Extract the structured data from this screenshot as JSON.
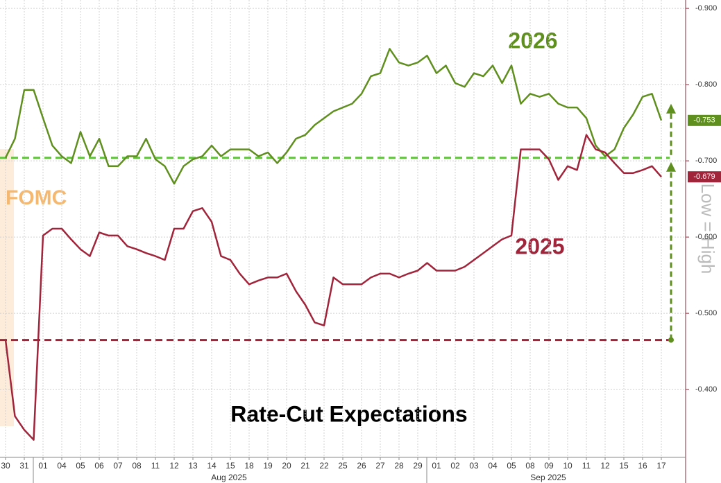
{
  "chart_data": {
    "type": "line",
    "title": "Rate-Cut Expectations",
    "annotations": [
      "2026",
      "2025",
      "FOMC",
      "Low = High"
    ],
    "x_groups": [
      "Aug 2025",
      "Sep 2025"
    ],
    "categories": [
      "30",
      null,
      "31",
      null,
      "01",
      null,
      "04",
      null,
      "05",
      null,
      "06",
      null,
      "07",
      null,
      "08",
      null,
      "11",
      null,
      "12",
      null,
      "13",
      null,
      "14",
      null,
      "15",
      null,
      "18",
      null,
      "19",
      null,
      "20",
      null,
      "21",
      null,
      "22",
      null,
      "25",
      null,
      "26",
      null,
      "27",
      null,
      "28",
      null,
      "29",
      null,
      "01",
      null,
      "02",
      null,
      "03",
      null,
      "04",
      null,
      "05",
      null,
      "08",
      null,
      "09",
      null,
      "10",
      null,
      "11",
      null,
      "12",
      null,
      "15",
      null,
      "16",
      null,
      "17"
    ],
    "series": [
      {
        "name": "2026",
        "color": "#5f8f1e",
        "values": [
          -0.704,
          -0.729,
          -0.793,
          -0.793,
          -0.756,
          -0.72,
          -0.706,
          -0.697,
          -0.738,
          -0.706,
          -0.729,
          -0.693,
          -0.693,
          -0.706,
          -0.706,
          -0.729,
          -0.702,
          -0.693,
          -0.67,
          -0.693,
          -0.702,
          -0.706,
          -0.72,
          -0.706,
          -0.715,
          -0.715,
          -0.715,
          -0.706,
          -0.711,
          -0.697,
          -0.711,
          -0.729,
          -0.734,
          -0.747,
          -0.756,
          -0.765,
          -0.77,
          -0.775,
          -0.788,
          -0.811,
          -0.815,
          -0.847,
          -0.829,
          -0.825,
          -0.829,
          -0.838,
          -0.815,
          -0.825,
          -0.802,
          -0.797,
          -0.815,
          -0.811,
          -0.825,
          -0.802,
          -0.825,
          -0.775,
          -0.788,
          -0.784,
          -0.788,
          -0.775,
          -0.77,
          -0.77,
          -0.756,
          -0.72,
          -0.706,
          -0.715,
          -0.743,
          -0.761,
          -0.784,
          -0.788,
          -0.753
        ]
      },
      {
        "name": "2025",
        "color": "#a0243a",
        "values": [
          -0.465,
          -0.365,
          -0.347,
          -0.334,
          -0.602,
          -0.611,
          -0.611,
          -0.597,
          -0.584,
          -0.575,
          -0.606,
          -0.602,
          -0.602,
          -0.588,
          -0.584,
          -0.579,
          -0.575,
          -0.57,
          -0.611,
          -0.611,
          -0.634,
          -0.638,
          -0.62,
          -0.575,
          -0.57,
          -0.552,
          -0.538,
          -0.543,
          -0.547,
          -0.547,
          -0.552,
          -0.529,
          -0.511,
          -0.488,
          -0.484,
          -0.547,
          -0.538,
          -0.538,
          -0.538,
          -0.547,
          -0.552,
          -0.552,
          -0.547,
          -0.552,
          -0.556,
          -0.566,
          -0.556,
          -0.556,
          -0.556,
          -0.561,
          -0.57,
          -0.579,
          -0.588,
          -0.597,
          -0.602,
          -0.715,
          -0.715,
          -0.715,
          -0.702,
          -0.675,
          -0.693,
          -0.688,
          -0.734,
          -0.715,
          -0.711,
          -0.697,
          -0.684,
          -0.684,
          -0.688,
          -0.693,
          -0.679
        ]
      }
    ],
    "reference_lines": [
      {
        "value": -0.704,
        "color": "#5fc23a"
      },
      {
        "value": -0.465,
        "color": "#a0243a"
      }
    ],
    "ylim": [
      -0.311,
      -0.911
    ],
    "yticks": [
      {
        "value": -0.9,
        "label": "-0.900"
      },
      {
        "value": -0.8,
        "label": "-0.800"
      },
      {
        "value": -0.7,
        "label": "-0.700"
      },
      {
        "value": -0.6,
        "label": "-0.600"
      },
      {
        "value": -0.5,
        "label": "-0.500"
      },
      {
        "value": -0.4,
        "label": "-0.400"
      }
    ],
    "grid": true
  }
}
